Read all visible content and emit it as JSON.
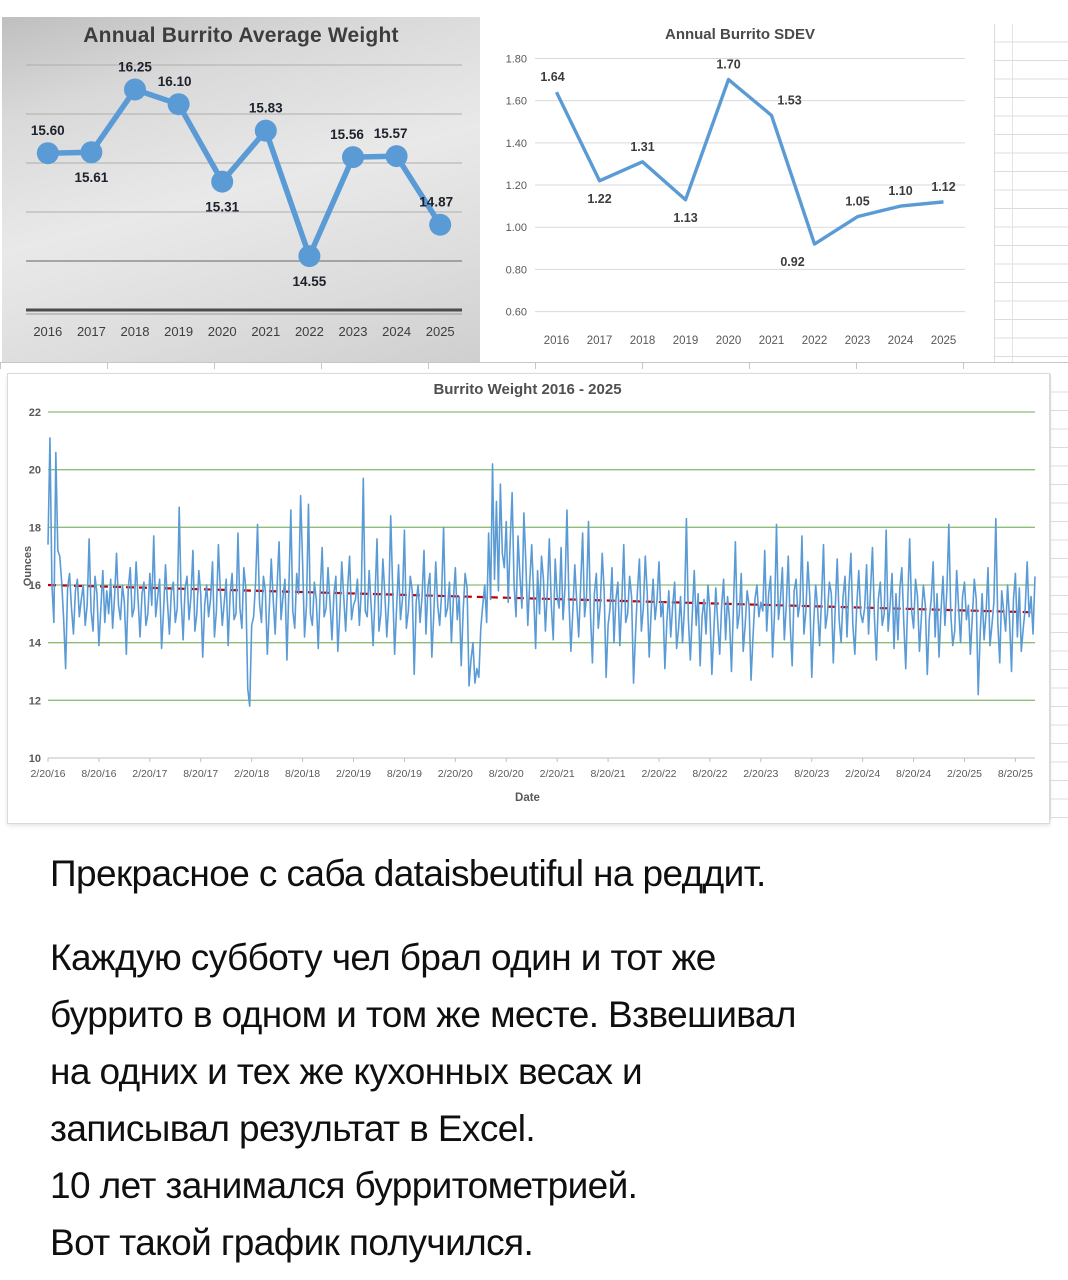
{
  "chart_data": [
    {
      "id": "avg",
      "type": "line",
      "title": "Annual Burrito Average Weight",
      "categories": [
        "2016",
        "2017",
        "2018",
        "2019",
        "2020",
        "2021",
        "2022",
        "2023",
        "2024",
        "2025"
      ],
      "values": [
        15.6,
        15.61,
        16.25,
        16.1,
        15.31,
        15.83,
        14.55,
        15.56,
        15.57,
        14.87
      ],
      "labels": [
        "15.60",
        "15.61",
        "16.25",
        "16.10",
        "15.31",
        "15.83",
        "14.55",
        "15.56",
        "15.57",
        "14.87"
      ],
      "label_pos": [
        "above",
        "below",
        "above",
        "above",
        "below",
        "above",
        "below",
        "above",
        "above",
        "above"
      ],
      "label_dx": [
        0,
        0,
        0,
        -4,
        0,
        0,
        0,
        -6,
        -6,
        -4
      ],
      "ylim": [
        14.0,
        16.5
      ],
      "gridlines": [
        14.5,
        15.0,
        15.5,
        16.0,
        16.5
      ],
      "grid_on": true,
      "legend": "none",
      "line_color": "#5B9BD5",
      "marker": true
    },
    {
      "id": "sdev",
      "type": "line",
      "title": "Annual Burrito SDEV",
      "categories": [
        "2016",
        "2017",
        "2018",
        "2019",
        "2020",
        "2021",
        "2022",
        "2023",
        "2024",
        "2025"
      ],
      "values": [
        1.64,
        1.22,
        1.31,
        1.13,
        1.7,
        1.53,
        0.92,
        1.05,
        1.1,
        1.12
      ],
      "labels": [
        "1.64",
        "1.22",
        "1.31",
        "1.13",
        "1.70",
        "1.53",
        "0.92",
        "1.05",
        "1.10",
        "1.12"
      ],
      "label_pos": [
        "above",
        "below",
        "above",
        "below",
        "above",
        "above",
        "below",
        "above",
        "above",
        "above"
      ],
      "label_dx": [
        -4,
        0,
        0,
        0,
        0,
        18,
        -22,
        0,
        0,
        0
      ],
      "ylim": [
        0.6,
        1.8
      ],
      "yticks": [
        "1.80",
        "1.60",
        "1.40",
        "1.20",
        "1.00",
        "0.80",
        "0.60"
      ],
      "ytick_vals": [
        1.8,
        1.6,
        1.4,
        1.2,
        1.0,
        0.8,
        0.6
      ],
      "grid_on": true,
      "legend": "none",
      "line_color": "#5B9BD5",
      "marker": false
    },
    {
      "id": "weekly",
      "type": "line",
      "title": "Burrito Weight 2016 - 2025",
      "xlabel": "Date",
      "ylabel": "Ounces",
      "ylim": [
        10,
        22
      ],
      "yticks": [
        10,
        12,
        14,
        16,
        18,
        20,
        22
      ],
      "green_gridlines": [
        12,
        14,
        16,
        18,
        20,
        22
      ],
      "xticks": [
        "2/20/16",
        "8/20/16",
        "2/20/17",
        "8/20/17",
        "2/20/18",
        "8/20/18",
        "2/20/19",
        "8/20/19",
        "2/20/20",
        "8/20/20",
        "2/20/21",
        "8/20/21",
        "2/20/22",
        "8/20/22",
        "2/20/23",
        "8/20/23",
        "2/20/24",
        "8/20/24",
        "2/20/25",
        "8/20/25"
      ],
      "xtick_interval": 26,
      "line_color": "#5B9BD5",
      "grid_color": "#8CBE76",
      "trend": {
        "start": 16.0,
        "end": 15.05,
        "color": "#C00000",
        "style": "dashed"
      },
      "values": [
        17.4,
        21.1,
        16.0,
        14.7,
        20.6,
        17.2,
        17.0,
        16.1,
        14.8,
        13.1,
        15.9,
        16.4,
        15.2,
        14.3,
        15.8,
        16.2,
        14.9,
        15.5,
        16.0,
        14.6,
        15.3,
        17.6,
        15.1,
        14.4,
        16.3,
        15.7,
        13.9,
        15.2,
        16.5,
        14.7,
        15.8,
        15.0,
        16.2,
        14.5,
        15.6,
        17.1,
        15.3,
        14.8,
        16.0,
        15.4,
        13.6,
        15.9,
        16.6,
        14.9,
        15.2,
        16.8,
        15.5,
        14.2,
        15.7,
        16.1,
        14.6,
        15.0,
        16.4,
        15.3,
        17.7,
        14.9,
        15.6,
        16.2,
        13.8,
        15.1,
        16.7,
        15.4,
        14.3,
        15.8,
        16.1,
        14.7,
        15.2,
        18.7,
        15.5,
        14.1,
        15.9,
        16.3,
        14.8,
        15.6,
        17.2,
        14.4,
        15.0,
        16.5,
        15.7,
        13.5,
        15.3,
        16.0,
        14.9,
        15.5,
        16.8,
        14.2,
        15.1,
        17.4,
        15.8,
        14.6,
        15.4,
        16.2,
        13.9,
        15.7,
        16.4,
        14.8,
        15.0,
        17.8,
        15.2,
        14.5,
        16.6,
        15.9,
        12.4,
        11.8,
        14.6,
        14.9,
        16.1,
        18.1,
        15.4,
        14.7,
        16.3,
        15.8,
        13.6,
        15.2,
        16.9,
        15.5,
        14.3,
        16.0,
        17.5,
        14.8,
        15.6,
        16.2,
        13.4,
        15.9,
        18.6,
        15.1,
        14.5,
        16.4,
        15.7,
        19.1,
        16.8,
        14.2,
        15.3,
        18.8,
        15.0,
        14.6,
        16.1,
        15.5,
        13.8,
        15.8,
        17.3,
        14.9,
        15.2,
        16.6,
        15.4,
        14.1,
        15.7,
        16.3,
        13.7,
        15.0,
        16.8,
        15.6,
        14.4,
        15.9,
        17.0,
        14.8,
        15.3,
        15.5,
        16.2,
        14.6,
        15.8,
        19.7,
        15.1,
        14.9,
        16.5,
        15.3,
        13.9,
        15.6,
        17.6,
        14.4,
        15.0,
        16.9,
        15.7,
        14.2,
        15.4,
        18.4,
        15.9,
        13.6,
        15.2,
        16.7,
        14.8,
        15.5,
        17.9,
        14.5,
        15.1,
        16.3,
        15.8,
        12.9,
        15.4,
        16.0,
        14.7,
        15.6,
        17.2,
        14.3,
        15.9,
        16.4,
        13.5,
        15.0,
        16.8,
        15.3,
        14.6,
        15.7,
        18.0,
        14.9,
        15.2,
        16.1,
        14.0,
        15.5,
        16.6,
        14.8,
        15.6,
        13.2,
        15.1,
        16.4,
        15.9,
        12.5,
        13.4,
        14.0,
        12.6,
        13.1,
        12.8,
        14.5,
        15.3,
        16.0,
        14.7,
        17.8,
        15.5,
        20.2,
        16.2,
        18.9,
        15.8,
        19.5,
        17.1,
        16.6,
        18.2,
        15.4,
        17.5,
        19.2,
        16.0,
        14.9,
        17.7,
        16.3,
        15.2,
        18.5,
        16.8,
        14.6,
        16.1,
        17.4,
        15.7,
        13.8,
        16.5,
        15.0,
        17.0,
        16.2,
        14.4,
        15.8,
        17.6,
        15.3,
        14.1,
        16.9,
        15.6,
        15.2,
        17.3,
        14.8,
        15.9,
        18.6,
        15.5,
        13.7,
        15.1,
        16.7,
        15.4,
        14.2,
        16.0,
        17.8,
        14.9,
        15.6,
        18.2,
        15.0,
        13.3,
        15.7,
        16.4,
        14.5,
        15.3,
        17.1,
        15.8,
        12.8,
        14.6,
        15.2,
        16.6,
        14.0,
        15.5,
        16.1,
        13.9,
        15.4,
        17.4,
        14.7,
        15.0,
        16.3,
        15.6,
        12.6,
        14.3,
        15.8,
        16.9,
        14.4,
        15.2,
        17.0,
        15.7,
        13.5,
        15.1,
        16.2,
        14.8,
        15.5,
        16.8,
        14.9,
        15.4,
        13.1,
        14.7,
        15.8,
        14.2,
        15.3,
        16.1,
        13.8,
        14.5,
        15.6,
        14.0,
        15.2,
        18.3,
        14.8,
        13.4,
        15.0,
        16.5,
        14.6,
        15.7,
        13.2,
        14.9,
        15.5,
        14.3,
        16.0,
        15.1,
        12.9,
        14.4,
        15.9,
        14.7,
        13.6,
        15.3,
        16.2,
        14.1,
        15.6,
        14.8,
        13.0,
        15.2,
        17.5,
        14.5,
        15.0,
        16.4,
        13.7,
        14.6,
        15.8,
        15.3,
        12.7,
        14.2,
        15.5,
        16.0,
        14.9,
        15.4,
        15.1,
        17.2,
        14.4,
        15.7,
        16.3,
        13.5,
        15.0,
        18.1,
        14.8,
        15.5,
        16.6,
        14.1,
        15.3,
        17.0,
        14.6,
        13.2,
        15.8,
        16.2,
        14.9,
        15.4,
        17.7,
        14.3,
        15.1,
        16.8,
        15.6,
        12.8,
        14.7,
        16.0,
        15.2,
        13.9,
        15.5,
        17.4,
        14.5,
        15.0,
        16.1,
        15.7,
        13.3,
        15.2,
        16.9,
        14.8,
        14.0,
        15.6,
        16.3,
        14.2,
        15.9,
        17.1,
        14.6,
        13.6,
        15.3,
        16.5,
        15.0,
        14.7,
        15.2,
        16.7,
        14.3,
        15.8,
        17.3,
        14.9,
        13.4,
        15.5,
        16.1,
        14.6,
        15.0,
        17.9,
        14.4,
        15.3,
        16.4,
        13.8,
        15.7,
        14.1,
        15.9,
        16.6,
        14.7,
        13.1,
        15.4,
        17.6,
        15.1,
        14.5,
        16.2,
        15.6,
        13.7,
        14.9,
        16.0,
        15.3,
        12.9,
        14.8,
        15.5,
        16.8,
        14.2,
        15.7,
        13.5,
        15.1,
        16.3,
        14.6,
        15.8,
        18.1,
        15.0,
        13.9,
        14.4,
        16.5,
        15.2,
        14.0,
        15.6,
        16.1,
        14.8,
        15.3,
        13.6,
        14.9,
        16.2,
        15.5,
        12.2,
        14.3,
        15.7,
        14.1,
        15.0,
        16.6,
        13.9,
        14.6,
        15.4,
        18.3,
        14.7,
        13.3,
        15.8,
        15.1,
        14.4,
        16.0,
        14.8,
        13.0,
        15.5,
        16.4,
        14.2,
        15.9,
        13.7,
        14.5,
        15.2,
        16.8,
        14.9,
        15.6,
        14.3,
        16.3
      ]
    }
  ],
  "caption": {
    "paragraphs": [
      {
        "lines": [
          "Прекрасное с саба dataisbeutiful на реддит."
        ]
      },
      {
        "lines": [
          "Каждую субботу чел брал один и тот же",
          "буррито в одном и том же месте. Взвешивал",
          "на одних и тех же кухонных весах и",
          "записывал результат в Excel."
        ]
      },
      {
        "lines": [
          "10 лет занимался бурритометрией."
        ]
      },
      {
        "lines": [
          "Вот такой график получился."
        ]
      }
    ]
  }
}
